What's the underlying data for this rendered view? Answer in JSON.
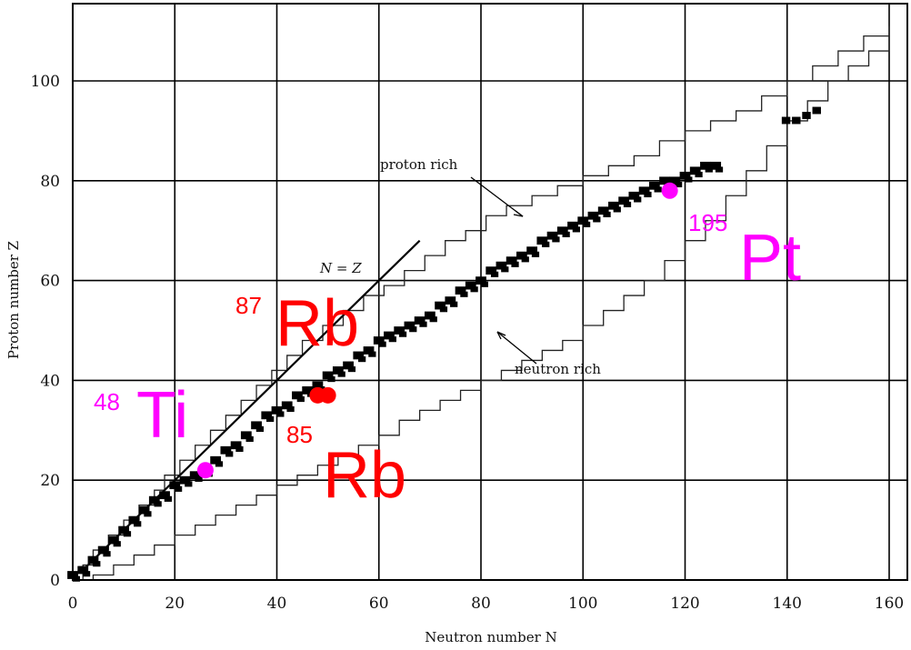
{
  "chart_data": {
    "type": "scatter",
    "title": "",
    "xlabel": "Neutron number  N",
    "ylabel": "Proton number  Z",
    "xlim": [
      0,
      163
    ],
    "ylim": [
      0,
      113
    ],
    "xticks": [
      0,
      20,
      40,
      60,
      80,
      100,
      120,
      140,
      160
    ],
    "yticks": [
      0,
      20,
      40,
      60,
      80,
      100
    ],
    "grid": true,
    "line_label": "N = Z",
    "region_labels": {
      "proton_rich": "proton rich",
      "neutron_rich": "neutron rich"
    },
    "highlighted_nuclides": [
      {
        "mass": "48",
        "symbol": "Ti",
        "N": 26,
        "Z": 22,
        "color": "#ff00ff"
      },
      {
        "mass": "87",
        "symbol": "Rb",
        "N": 50,
        "Z": 37,
        "color": "#ff0000"
      },
      {
        "mass": "85",
        "symbol": "Rb",
        "N": 48,
        "Z": 37,
        "color": "#ff0000"
      },
      {
        "mass": "195",
        "symbol": "Pt",
        "N": 117,
        "Z": 78,
        "color": "#ff00ff"
      }
    ],
    "stability_band": [
      [
        0,
        1
      ],
      [
        2,
        2
      ],
      [
        4,
        4
      ],
      [
        6,
        6
      ],
      [
        8,
        8
      ],
      [
        10,
        10
      ],
      [
        12,
        12
      ],
      [
        14,
        14
      ],
      [
        16,
        16
      ],
      [
        18,
        17
      ],
      [
        20,
        19
      ],
      [
        22,
        20
      ],
      [
        24,
        21
      ],
      [
        26,
        22
      ],
      [
        28,
        24
      ],
      [
        30,
        26
      ],
      [
        32,
        27
      ],
      [
        34,
        29
      ],
      [
        36,
        31
      ],
      [
        38,
        33
      ],
      [
        40,
        34
      ],
      [
        42,
        35
      ],
      [
        44,
        37
      ],
      [
        46,
        38
      ],
      [
        48,
        39
      ],
      [
        50,
        41
      ],
      [
        52,
        42
      ],
      [
        54,
        43
      ],
      [
        56,
        45
      ],
      [
        58,
        46
      ],
      [
        60,
        48
      ],
      [
        62,
        49
      ],
      [
        64,
        50
      ],
      [
        66,
        51
      ],
      [
        68,
        52
      ],
      [
        70,
        53
      ],
      [
        72,
        55
      ],
      [
        74,
        56
      ],
      [
        76,
        58
      ],
      [
        78,
        59
      ],
      [
        80,
        60
      ],
      [
        82,
        62
      ],
      [
        84,
        63
      ],
      [
        86,
        64
      ],
      [
        88,
        65
      ],
      [
        90,
        66
      ],
      [
        92,
        68
      ],
      [
        94,
        69
      ],
      [
        96,
        70
      ],
      [
        98,
        71
      ],
      [
        100,
        72
      ],
      [
        102,
        73
      ],
      [
        104,
        74
      ],
      [
        106,
        75
      ],
      [
        108,
        76
      ],
      [
        110,
        77
      ],
      [
        112,
        78
      ],
      [
        114,
        79
      ],
      [
        116,
        80
      ],
      [
        118,
        80
      ],
      [
        120,
        81
      ],
      [
        122,
        82
      ],
      [
        124,
        83
      ],
      [
        126,
        83
      ]
    ],
    "heavy_band": [
      [
        140,
        92
      ],
      [
        142,
        92
      ],
      [
        144,
        93
      ],
      [
        146,
        94
      ]
    ],
    "proton_drip_line": [
      [
        0,
        0
      ],
      [
        2,
        3
      ],
      [
        4,
        6
      ],
      [
        7,
        9
      ],
      [
        10,
        12
      ],
      [
        13,
        15
      ],
      [
        16,
        18
      ],
      [
        18,
        21
      ],
      [
        21,
        24
      ],
      [
        24,
        27
      ],
      [
        27,
        30
      ],
      [
        30,
        33
      ],
      [
        33,
        36
      ],
      [
        36,
        39
      ],
      [
        39,
        42
      ],
      [
        42,
        45
      ],
      [
        45,
        48
      ],
      [
        49,
        51
      ],
      [
        53,
        54
      ],
      [
        57,
        57
      ],
      [
        61,
        59
      ],
      [
        65,
        62
      ],
      [
        69,
        65
      ],
      [
        73,
        68
      ],
      [
        77,
        70
      ],
      [
        81,
        73
      ],
      [
        85,
        75
      ],
      [
        90,
        77
      ],
      [
        95,
        79
      ],
      [
        100,
        81
      ],
      [
        105,
        83
      ],
      [
        110,
        85
      ],
      [
        115,
        88
      ],
      [
        120,
        90
      ],
      [
        125,
        92
      ],
      [
        130,
        94
      ],
      [
        135,
        97
      ],
      [
        140,
        100
      ],
      [
        145,
        103
      ],
      [
        150,
        106
      ],
      [
        155,
        109
      ],
      [
        160,
        111
      ]
    ],
    "neutron_drip_line": [
      [
        0,
        0
      ],
      [
        4,
        1
      ],
      [
        8,
        3
      ],
      [
        12,
        5
      ],
      [
        16,
        7
      ],
      [
        20,
        9
      ],
      [
        24,
        11
      ],
      [
        28,
        13
      ],
      [
        32,
        15
      ],
      [
        36,
        17
      ],
      [
        40,
        19
      ],
      [
        44,
        21
      ],
      [
        48,
        23
      ],
      [
        52,
        25
      ],
      [
        56,
        27
      ],
      [
        60,
        29
      ],
      [
        64,
        32
      ],
      [
        68,
        34
      ],
      [
        72,
        36
      ],
      [
        76,
        38
      ],
      [
        80,
        40
      ],
      [
        84,
        42
      ],
      [
        88,
        44
      ],
      [
        92,
        46
      ],
      [
        96,
        48
      ],
      [
        100,
        51
      ],
      [
        104,
        54
      ],
      [
        108,
        57
      ],
      [
        112,
        60
      ],
      [
        116,
        64
      ],
      [
        120,
        68
      ],
      [
        124,
        72
      ],
      [
        128,
        77
      ],
      [
        132,
        82
      ],
      [
        136,
        87
      ],
      [
        140,
        92
      ],
      [
        144,
        96
      ],
      [
        148,
        100
      ],
      [
        152,
        103
      ],
      [
        156,
        106
      ],
      [
        160,
        109
      ]
    ],
    "nz_line": [
      [
        2,
        2
      ],
      [
        68,
        68
      ]
    ]
  }
}
